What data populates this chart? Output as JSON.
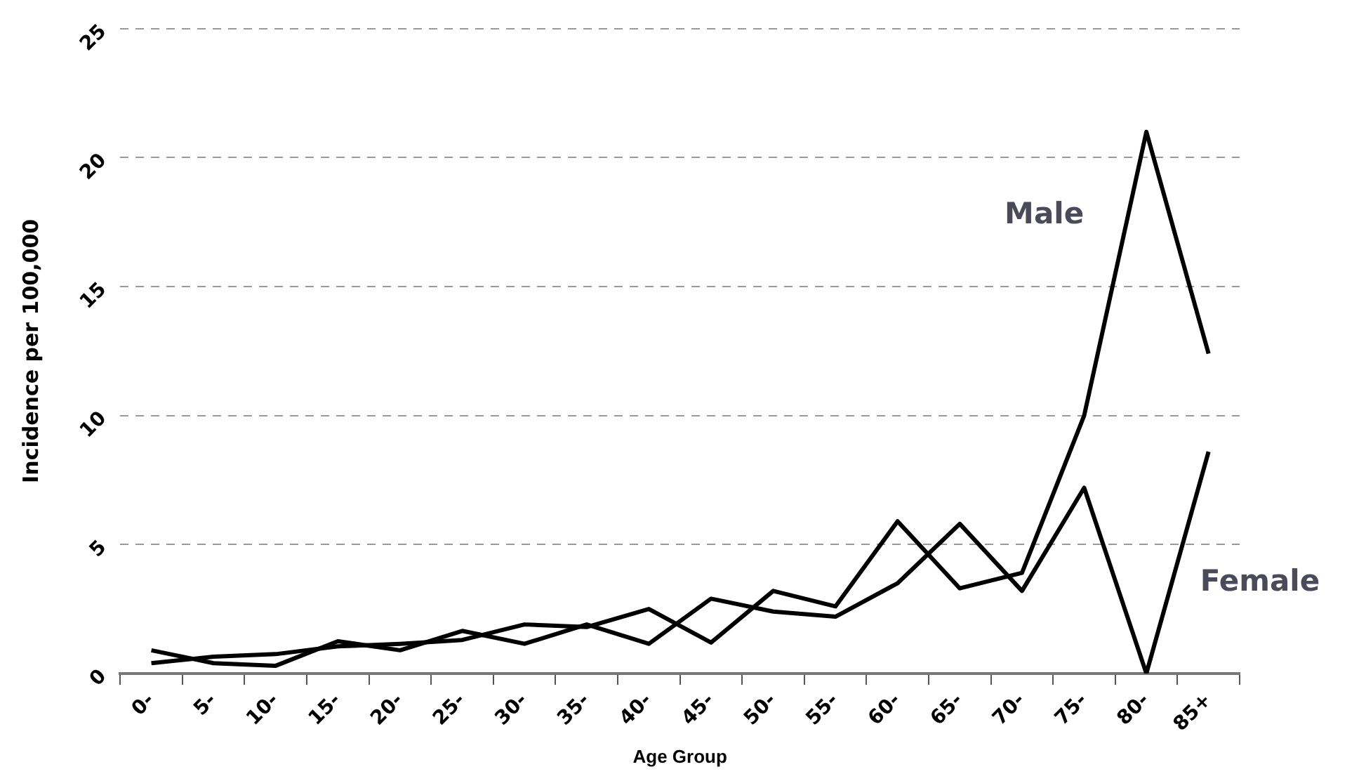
{
  "chart_data": {
    "type": "line",
    "xlabel": "Age Group",
    "ylabel": "Incidence per 100,000",
    "categories": [
      "0-",
      "5-",
      "10-",
      "15-",
      "20-",
      "25-",
      "30-",
      "35-",
      "40-",
      "45-",
      "50-",
      "55-",
      "60-",
      "65-",
      "70-",
      "75-",
      "80-",
      "85+"
    ],
    "series": [
      {
        "name": "Male",
        "color": "#000000",
        "values": [
          0.4,
          0.65,
          0.75,
          1.05,
          1.15,
          1.3,
          1.9,
          1.8,
          2.5,
          1.2,
          3.2,
          2.6,
          5.9,
          3.3,
          3.9,
          10,
          21,
          12.4
        ]
      },
      {
        "name": "Female",
        "color": "#000000",
        "values": [
          0.9,
          0.4,
          0.3,
          1.25,
          0.9,
          1.65,
          1.15,
          1.9,
          1.15,
          2.9,
          2.4,
          2.2,
          3.5,
          5.8,
          3.2,
          7.2,
          0,
          8.6
        ]
      }
    ],
    "ylim": [
      0,
      25
    ],
    "yticks": [
      0,
      5,
      10,
      15,
      20,
      25
    ],
    "grid": "y",
    "legend": false,
    "marker": "none",
    "line_style": "solid"
  }
}
